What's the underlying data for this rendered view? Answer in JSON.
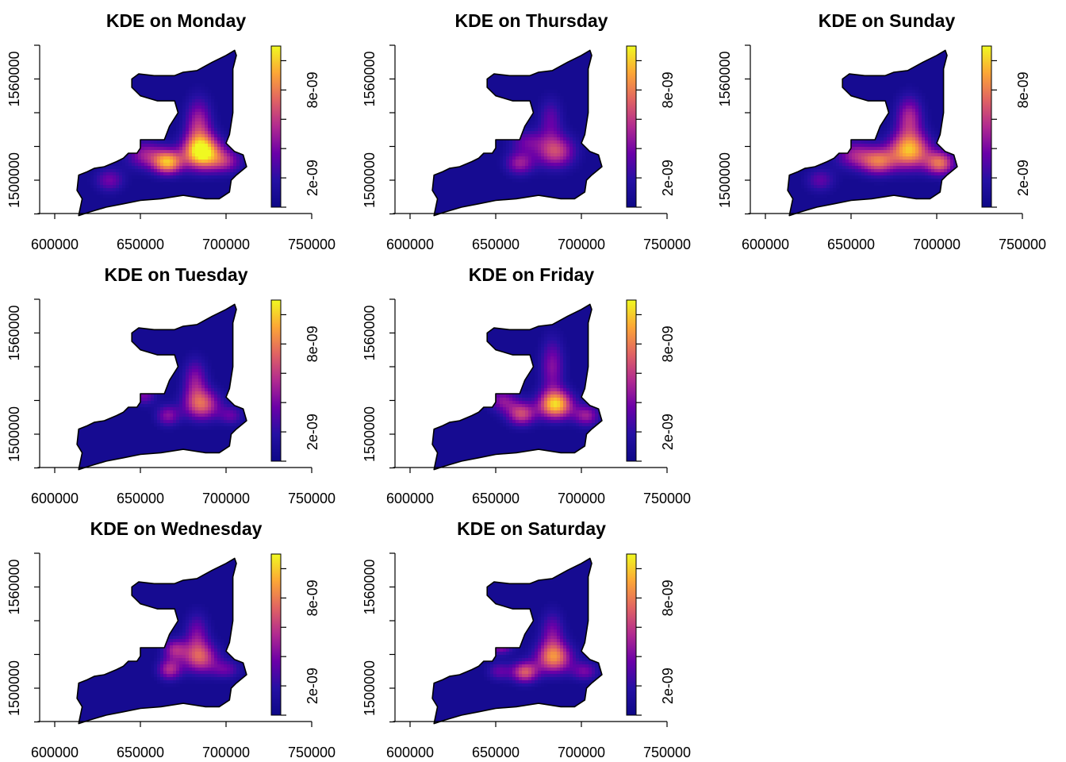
{
  "figure": {
    "colormap": [
      "#0d0887",
      "#2510a3",
      "#6a00a8",
      "#b12a90",
      "#e16462",
      "#fca636",
      "#f0f921"
    ],
    "background": "#ffffff"
  },
  "chart_data": [
    {
      "type": "heatmap",
      "title": "KDE on Monday",
      "xlim": [
        590000,
        750000
      ],
      "ylim": [
        1480000,
        1580000
      ],
      "xticks": [
        "600000",
        "650000",
        "700000",
        "750000"
      ],
      "yticks": [
        "1500000",
        "1560000"
      ],
      "colorbar_ticks": [
        "2e-09",
        "8e-09"
      ],
      "colorbar_range": [
        0,
        1.1e-08
      ],
      "hotspots": [
        {
          "x": 686000,
          "y": 1516500,
          "density": 1.05e-08,
          "sx": 8000,
          "sy": 7000
        },
        {
          "x": 666000,
          "y": 1510500,
          "density": 8.5e-09,
          "sx": 6000,
          "sy": 5000
        },
        {
          "x": 684000,
          "y": 1533000,
          "density": 5e-09,
          "sx": 5500,
          "sy": 11000
        },
        {
          "x": 700000,
          "y": 1511000,
          "density": 4e-09,
          "sx": 7000,
          "sy": 5000
        },
        {
          "x": 653000,
          "y": 1515000,
          "density": 4.5e-09,
          "sx": 8000,
          "sy": 6000
        },
        {
          "x": 632000,
          "y": 1500000,
          "density": 3.5e-09,
          "sx": 6000,
          "sy": 5000
        }
      ]
    },
    {
      "type": "heatmap",
      "title": "KDE on Thursday",
      "xlim": [
        590000,
        750000
      ],
      "ylim": [
        1480000,
        1580000
      ],
      "xticks": [
        "600000",
        "650000",
        "700000",
        "750000"
      ],
      "yticks": [
        "1500000",
        "1560000"
      ],
      "colorbar_ticks": [
        "2e-09",
        "8e-09"
      ],
      "colorbar_range": [
        0,
        1.1e-08
      ],
      "hotspots": [
        {
          "x": 685000,
          "y": 1517000,
          "density": 6e-09,
          "sx": 8000,
          "sy": 7000
        },
        {
          "x": 664000,
          "y": 1510000,
          "density": 4.5e-09,
          "sx": 6000,
          "sy": 5000
        },
        {
          "x": 682000,
          "y": 1536000,
          "density": 3e-09,
          "sx": 5000,
          "sy": 9000
        },
        {
          "x": 668000,
          "y": 1523000,
          "density": 3e-09,
          "sx": 7000,
          "sy": 5000
        }
      ]
    },
    {
      "type": "heatmap",
      "title": "KDE on Sunday",
      "xlim": [
        590000,
        750000
      ],
      "ylim": [
        1480000,
        1580000
      ],
      "xticks": [
        "600000",
        "650000",
        "700000",
        "750000"
      ],
      "yticks": [
        "1500000",
        "1560000"
      ],
      "colorbar_ticks": [
        "2e-09",
        "8e-09"
      ],
      "colorbar_range": [
        0,
        1.1e-08
      ],
      "hotspots": [
        {
          "x": 684000,
          "y": 1517500,
          "density": 9e-09,
          "sx": 8500,
          "sy": 7500
        },
        {
          "x": 702000,
          "y": 1510000,
          "density": 7e-09,
          "sx": 6000,
          "sy": 5000
        },
        {
          "x": 666000,
          "y": 1511000,
          "density": 6.5e-09,
          "sx": 7000,
          "sy": 5500
        },
        {
          "x": 684000,
          "y": 1537000,
          "density": 5e-09,
          "sx": 5500,
          "sy": 9000
        },
        {
          "x": 652000,
          "y": 1515000,
          "density": 4.5e-09,
          "sx": 8000,
          "sy": 6000
        },
        {
          "x": 632000,
          "y": 1500000,
          "density": 3e-09,
          "sx": 6000,
          "sy": 5000
        }
      ]
    },
    {
      "type": "heatmap",
      "title": "KDE on Tuesday",
      "xlim": [
        590000,
        750000
      ],
      "ylim": [
        1480000,
        1580000
      ],
      "xticks": [
        "600000",
        "650000",
        "700000",
        "750000"
      ],
      "yticks": [
        "1500000",
        "1560000"
      ],
      "colorbar_ticks": [
        "2e-09",
        "8e-09"
      ],
      "colorbar_range": [
        0,
        1.1e-08
      ],
      "hotspots": [
        {
          "x": 686000,
          "y": 1517500,
          "density": 6.5e-09,
          "sx": 7500,
          "sy": 6500
        },
        {
          "x": 666000,
          "y": 1511000,
          "density": 4e-09,
          "sx": 5000,
          "sy": 4500
        },
        {
          "x": 682000,
          "y": 1532000,
          "density": 4e-09,
          "sx": 5000,
          "sy": 9000
        },
        {
          "x": 652000,
          "y": 1523000,
          "density": 3.5e-09,
          "sx": 5000,
          "sy": 4000
        },
        {
          "x": 703000,
          "y": 1511000,
          "density": 3e-09,
          "sx": 5000,
          "sy": 4000
        }
      ]
    },
    {
      "type": "heatmap",
      "title": "KDE on Friday",
      "xlim": [
        590000,
        750000
      ],
      "ylim": [
        1480000,
        1580000
      ],
      "xticks": [
        "600000",
        "650000",
        "700000",
        "750000"
      ],
      "yticks": [
        "1500000",
        "1560000"
      ],
      "colorbar_ticks": [
        "2e-09",
        "8e-09"
      ],
      "colorbar_range": [
        0,
        1.1e-08
      ],
      "hotspots": [
        {
          "x": 685000,
          "y": 1517500,
          "density": 9.5e-09,
          "sx": 7000,
          "sy": 6000
        },
        {
          "x": 665000,
          "y": 1512000,
          "density": 6e-09,
          "sx": 6000,
          "sy": 5000
        },
        {
          "x": 683000,
          "y": 1540000,
          "density": 4e-09,
          "sx": 5000,
          "sy": 12000
        },
        {
          "x": 703000,
          "y": 1511000,
          "density": 4.5e-09,
          "sx": 5500,
          "sy": 4500
        },
        {
          "x": 654000,
          "y": 1520000,
          "density": 4e-09,
          "sx": 6000,
          "sy": 5000
        }
      ]
    },
    {
      "type": "heatmap",
      "title": "KDE on Wednesday",
      "xlim": [
        590000,
        750000
      ],
      "ylim": [
        1480000,
        1580000
      ],
      "xticks": [
        "600000",
        "650000",
        "700000",
        "750000"
      ],
      "yticks": [
        "1500000",
        "1560000"
      ],
      "colorbar_ticks": [
        "2e-09",
        "8e-09"
      ],
      "colorbar_range": [
        0,
        1.1e-08
      ],
      "hotspots": [
        {
          "x": 685000,
          "y": 1518000,
          "density": 6e-09,
          "sx": 7500,
          "sy": 6500
        },
        {
          "x": 667000,
          "y": 1511000,
          "density": 5e-09,
          "sx": 5000,
          "sy": 4500
        },
        {
          "x": 670000,
          "y": 1523000,
          "density": 4.5e-09,
          "sx": 5000,
          "sy": 4500
        },
        {
          "x": 683000,
          "y": 1532000,
          "density": 3.5e-09,
          "sx": 5000,
          "sy": 9000
        },
        {
          "x": 700000,
          "y": 1511000,
          "density": 3e-09,
          "sx": 6000,
          "sy": 4000
        }
      ]
    },
    {
      "type": "heatmap",
      "title": "KDE on Saturday",
      "xlim": [
        590000,
        750000
      ],
      "ylim": [
        1480000,
        1580000
      ],
      "xticks": [
        "600000",
        "650000",
        "700000",
        "750000"
      ],
      "yticks": [
        "1500000",
        "1560000"
      ],
      "colorbar_ticks": [
        "2e-09",
        "8e-09"
      ],
      "colorbar_range": [
        0,
        1.1e-08
      ],
      "hotspots": [
        {
          "x": 684000,
          "y": 1518000,
          "density": 7.5e-09,
          "sx": 7500,
          "sy": 6500
        },
        {
          "x": 667000,
          "y": 1509500,
          "density": 6.5e-09,
          "sx": 5500,
          "sy": 4500
        },
        {
          "x": 653000,
          "y": 1525000,
          "density": 4.5e-09,
          "sx": 5000,
          "sy": 3500
        },
        {
          "x": 683000,
          "y": 1533000,
          "density": 3.5e-09,
          "sx": 5000,
          "sy": 9000
        },
        {
          "x": 702000,
          "y": 1510000,
          "density": 3.5e-09,
          "sx": 5500,
          "sy": 4000
        },
        {
          "x": 652000,
          "y": 1510000,
          "density": 3e-09,
          "sx": 5000,
          "sy": 4000
        }
      ]
    }
  ]
}
